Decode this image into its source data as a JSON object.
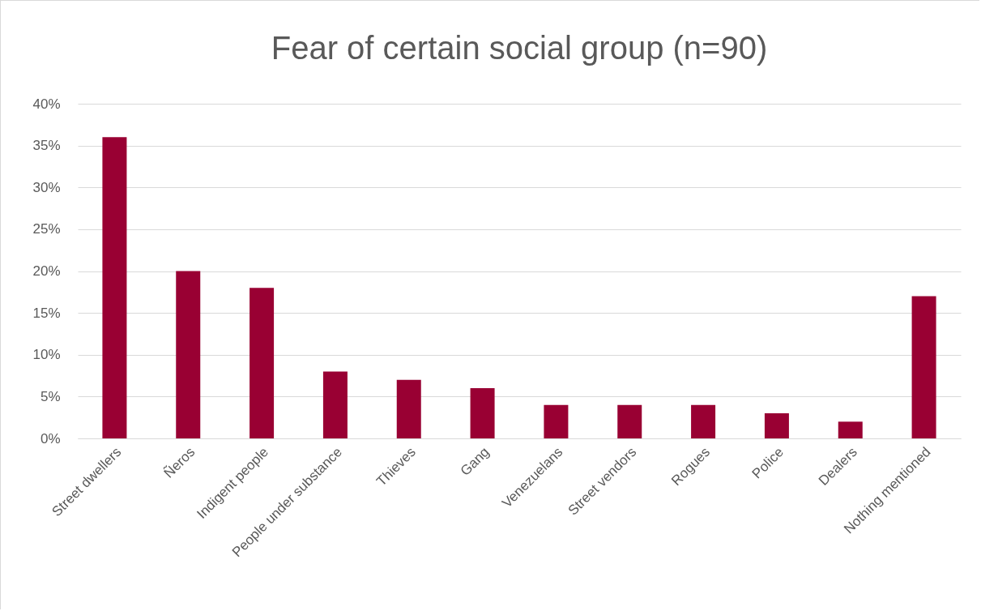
{
  "chart_data": {
    "type": "bar",
    "title": "Fear of certain social group (n=90)",
    "categories": [
      "Street dwellers",
      "Ñeros",
      "Indigent people",
      "People under substance",
      "Thieves",
      "Gang",
      "Venezuelans",
      "Street vendors",
      "Rogues",
      "Police",
      "Dealers",
      "Nothing mentioned"
    ],
    "values": [
      36,
      20,
      18,
      8,
      7,
      6,
      4,
      4,
      4,
      3,
      2,
      17
    ],
    "color": "#990033",
    "ylim": [
      0,
      40
    ],
    "yticks": [
      {
        "value": 0,
        "label": "0%"
      },
      {
        "value": 5,
        "label": "5%"
      },
      {
        "value": 10,
        "label": "10%"
      },
      {
        "value": 15,
        "label": "15%"
      },
      {
        "value": 20,
        "label": "20%"
      },
      {
        "value": 25,
        "label": "25%"
      },
      {
        "value": 30,
        "label": "30%"
      },
      {
        "value": 35,
        "label": "35%"
      },
      {
        "value": 40,
        "label": "40%"
      }
    ],
    "grid": true
  }
}
